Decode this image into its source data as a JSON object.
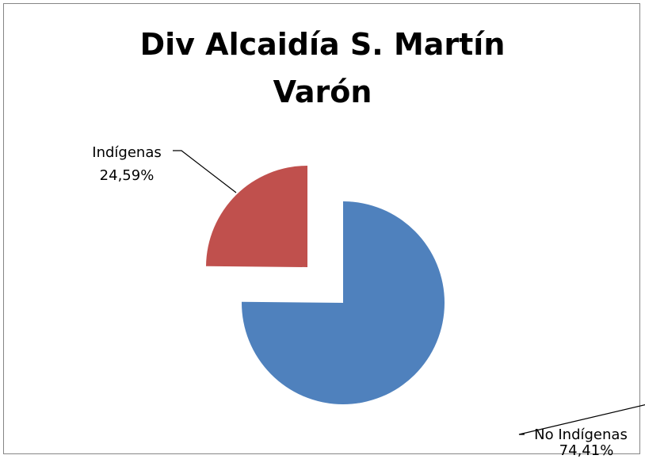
{
  "chart_data": {
    "type": "pie",
    "title_lines": [
      "Div Alcaidía S. Martín",
      "Varón"
    ],
    "slices": [
      {
        "label": "No Indígenas",
        "value": 74.41,
        "display": "74,41%",
        "color": "#4F81BD"
      },
      {
        "label": "Indígenas",
        "value": 24.59,
        "display": "24,59%",
        "color": "#C0504D"
      }
    ],
    "exploded": true,
    "legend": "none"
  }
}
